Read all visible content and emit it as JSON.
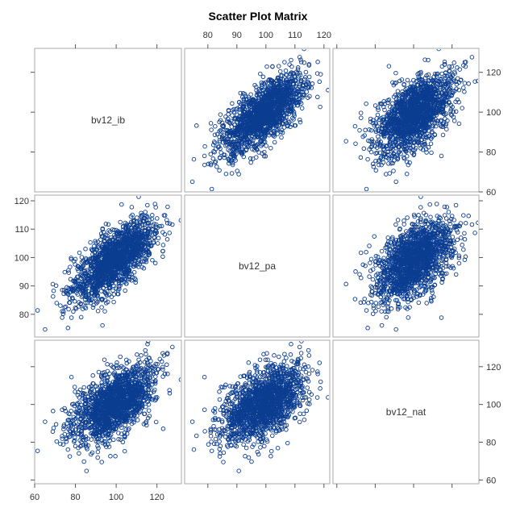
{
  "chart_data": {
    "type": "scatter",
    "subtype": "scatter-matrix",
    "title": "Scatter Plot Matrix",
    "variables": [
      {
        "name": "bv12_ib",
        "range": [
          60,
          132
        ],
        "ticks": [
          60,
          80,
          100,
          120
        ]
      },
      {
        "name": "bv12_pa",
        "range": [
          72,
          122
        ],
        "ticks": [
          80,
          90,
          100,
          110,
          120
        ]
      },
      {
        "name": "bv12_nat",
        "range": [
          58,
          134
        ],
        "ticks": [
          60,
          80,
          100,
          120
        ]
      }
    ],
    "axis_labels": {
      "top": {
        "column": 1,
        "ticks": [
          80,
          90,
          100,
          110,
          120
        ]
      },
      "right_row0": {
        "variable": 0,
        "ticks": [
          60,
          80,
          100,
          120
        ]
      },
      "left_row1": {
        "variable": 1,
        "ticks": [
          80,
          90,
          100,
          110,
          120
        ]
      },
      "right_row2": {
        "variable": 2,
        "ticks": [
          60,
          80,
          100,
          120
        ]
      },
      "bottom": {
        "column": 0,
        "ticks": [
          60,
          80,
          100,
          120
        ]
      }
    },
    "marker_color": "#0b3d91",
    "marker": "open-circle",
    "grid": false,
    "legend": "none",
    "approx_means": [
      99,
      99,
      100
    ],
    "approx_sds": [
      10,
      7,
      10
    ],
    "approx_correlations": {
      "ib_pa": 0.7,
      "ib_nat": 0.55,
      "pa_nat": 0.5
    },
    "approx_n": 1600
  }
}
